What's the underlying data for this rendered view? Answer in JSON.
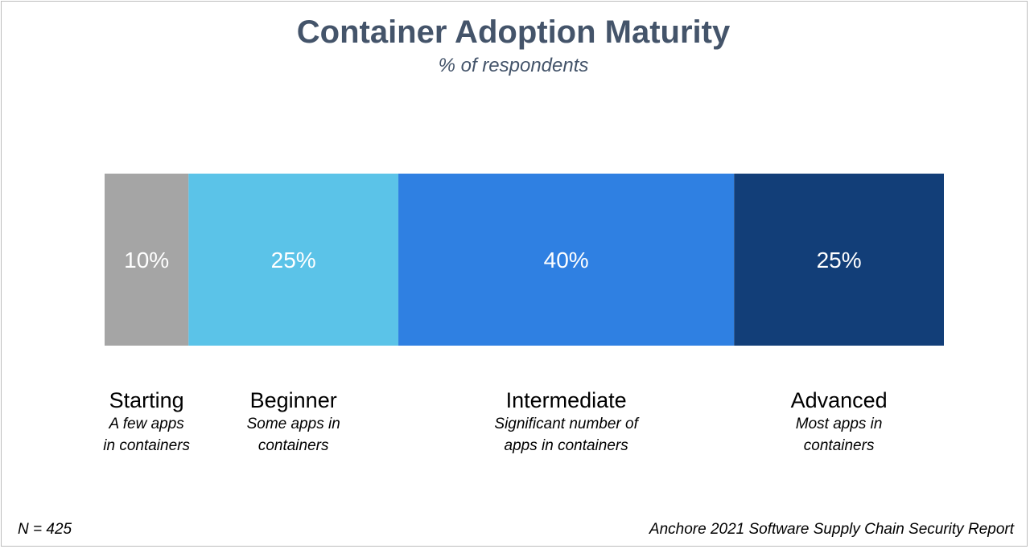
{
  "chart_data": {
    "type": "bar",
    "stacked": true,
    "orientation": "horizontal",
    "title": "Container Adoption Maturity",
    "subtitle": "% of respondents",
    "categories": [
      "Starting",
      "Beginner",
      "Intermediate",
      "Advanced"
    ],
    "descriptions": [
      "A few apps\nin containers",
      "Some apps in\ncontainers",
      "Significant number of\napps in containers",
      "Most apps in\ncontainers"
    ],
    "values": [
      10,
      25,
      40,
      25
    ],
    "value_labels": [
      "10%",
      "25%",
      "40%",
      "25%"
    ],
    "colors": [
      "#a5a5a5",
      "#5bc3e8",
      "#2f80e2",
      "#123e78"
    ],
    "unit": "%",
    "legend": "none",
    "grid": false
  },
  "footnotes": {
    "sample": "N = 425",
    "source": "Anchore 2021 Software Supply Chain Security Report"
  }
}
